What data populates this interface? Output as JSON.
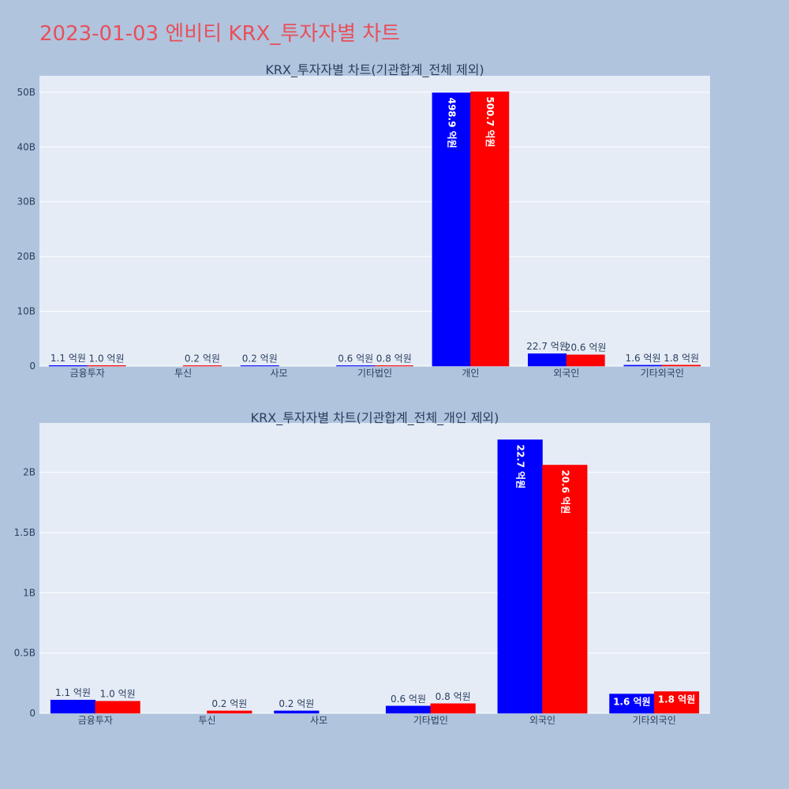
{
  "page_title": "2023-01-03 엔비티 KRX_투자자별 차트",
  "colors": {
    "background": "#b0c4de",
    "plot_bg": "#e5ecf6",
    "grid": "#ffffff",
    "title": "#e8505b",
    "text": "#2a3f5f"
  },
  "chart_data": [
    {
      "type": "bar",
      "title": "KRX_투자자별 차트(기관합계_전체 제외)",
      "categories": [
        "금융투자",
        "투신",
        "사모",
        "기타법인",
        "개인",
        "외국인",
        "기타외국인"
      ],
      "series": [
        {
          "color": "#0000ff",
          "values": [
            110000000,
            null,
            20000000,
            60000000,
            49890000000,
            2270000000,
            160000000
          ],
          "labels": [
            "1.1 억원",
            "",
            "0.2 억원",
            "0.6 억원",
            "498.9 억원",
            "22.7 억원",
            "1.6 억원"
          ]
        },
        {
          "color": "#ff0000",
          "values": [
            100000000,
            20000000,
            null,
            80000000,
            50070000000,
            2060000000,
            180000000
          ],
          "labels": [
            "1.0 억원",
            "0.2 억원",
            "",
            "0.8 억원",
            "500.7 억원",
            "20.6 억원",
            "1.8 억원"
          ]
        }
      ],
      "ylim": [
        0,
        53000000000
      ],
      "yticks": [
        0,
        10000000000,
        20000000000,
        30000000000,
        40000000000,
        50000000000
      ],
      "ytick_labels": [
        "0",
        "10B",
        "20B",
        "30B",
        "40B",
        "50B"
      ],
      "grid": true
    },
    {
      "type": "bar",
      "title": "KRX_투자자별 차트(기관합계_전체_개인 제외)",
      "categories": [
        "금융투자",
        "투신",
        "사모",
        "기타법인",
        "외국인",
        "기타외국인"
      ],
      "series": [
        {
          "color": "#0000ff",
          "values": [
            110000000,
            null,
            20000000,
            60000000,
            2270000000,
            160000000
          ],
          "labels": [
            "1.1 억원",
            "",
            "0.2 억원",
            "0.6 억원",
            "22.7 억원",
            "1.6 억원"
          ]
        },
        {
          "color": "#ff0000",
          "values": [
            100000000,
            20000000,
            null,
            80000000,
            2060000000,
            180000000
          ],
          "labels": [
            "1.0 억원",
            "0.2 억원",
            "",
            "0.8 억원",
            "20.6 억원",
            "1.8 억원"
          ]
        }
      ],
      "ylim": [
        0,
        2410000000
      ],
      "yticks": [
        0,
        500000000,
        1000000000,
        1500000000,
        2000000000
      ],
      "ytick_labels": [
        "0",
        "0.5B",
        "1B",
        "1.5B",
        "2B"
      ],
      "grid": true
    }
  ]
}
